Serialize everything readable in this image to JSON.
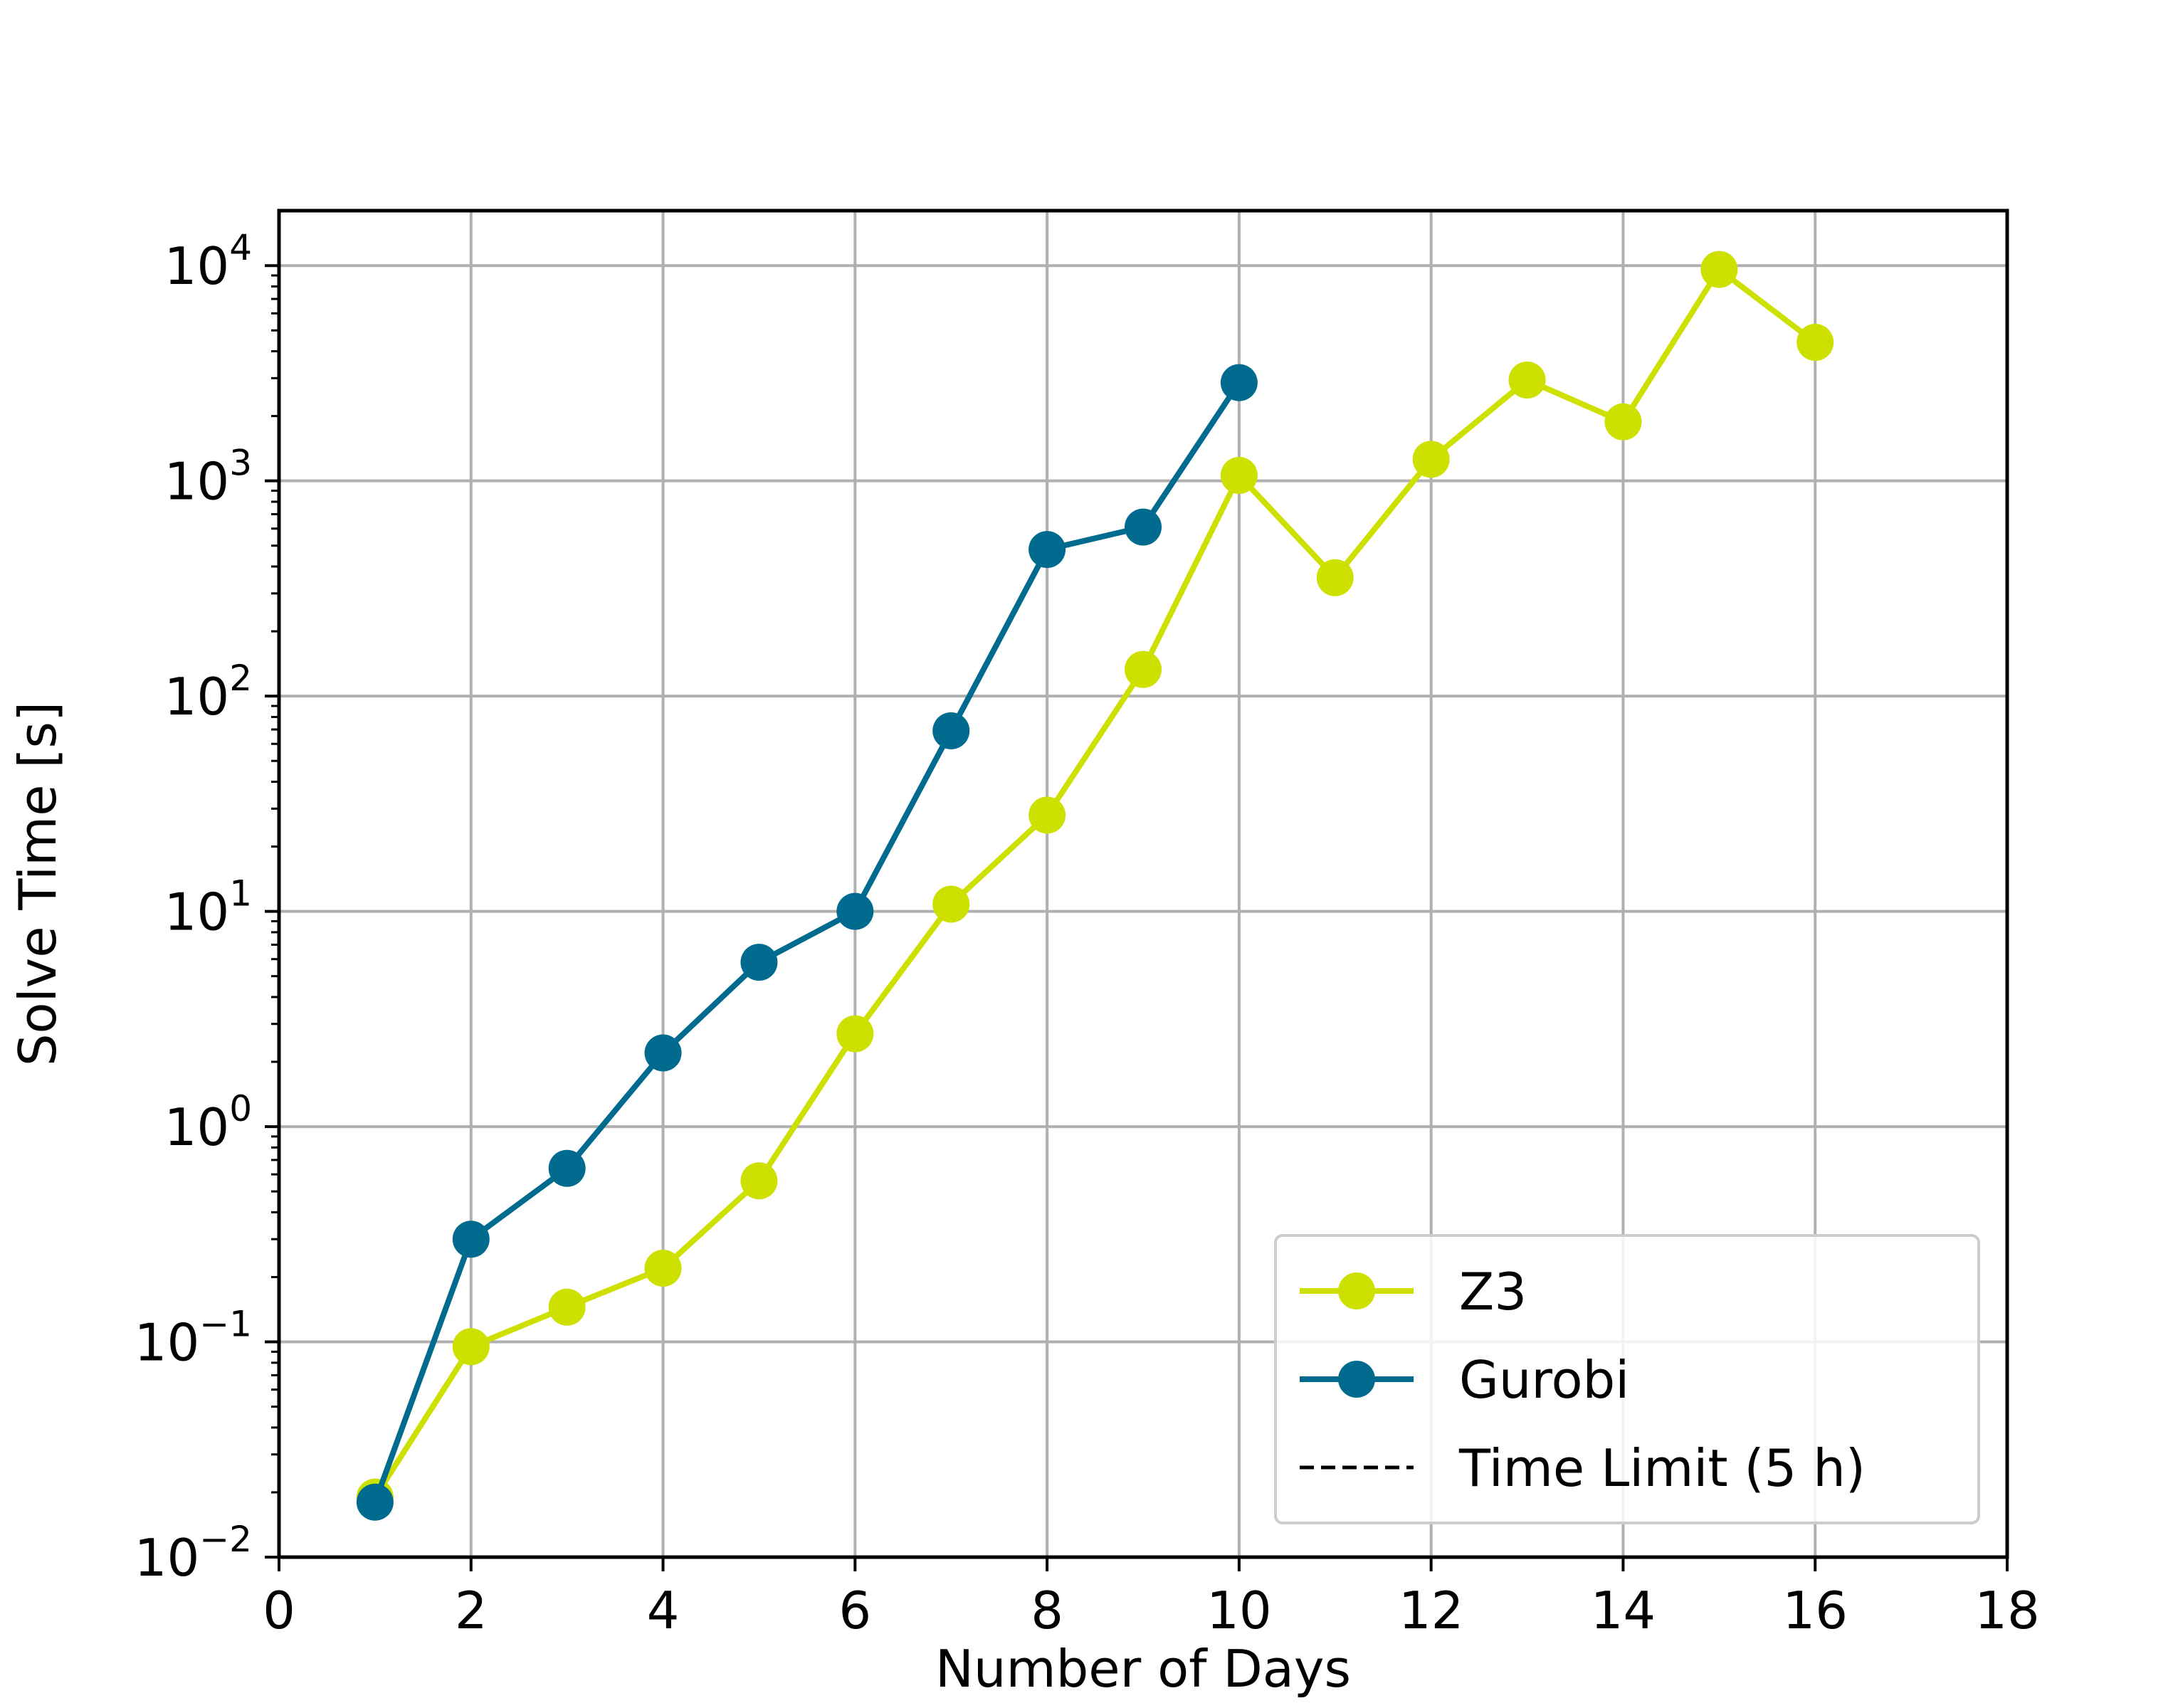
{
  "chart_data": {
    "type": "line",
    "title": "",
    "xlabel": "Number of Days",
    "ylabel": "Solve Time [s]",
    "xlim": [
      0,
      18
    ],
    "ylim": [
      0.01,
      18000
    ],
    "yscale": "log",
    "grid": true,
    "legend_position": "lower-right",
    "xticks": [
      "0",
      "2",
      "4",
      "6",
      "8",
      "10",
      "12",
      "14",
      "16",
      "18"
    ],
    "yticks": [
      {
        "base": "10",
        "exp": "−2"
      },
      {
        "base": "10",
        "exp": "−1"
      },
      {
        "base": "10",
        "exp": "0"
      },
      {
        "base": "10",
        "exp": "1"
      },
      {
        "base": "10",
        "exp": "2"
      },
      {
        "base": "10",
        "exp": "3"
      },
      {
        "base": "10",
        "exp": "4"
      }
    ],
    "series": [
      {
        "name": "Z3",
        "color": "#cde000",
        "marker": "circle",
        "x": [
          1,
          2,
          3,
          4,
          5,
          6,
          7,
          8,
          9,
          10,
          11,
          12,
          13,
          14,
          15,
          16
        ],
        "y": [
          0.019,
          0.095,
          0.145,
          0.22,
          0.56,
          2.7,
          10.8,
          28,
          133,
          1060,
          355,
          1260,
          2940,
          1880,
          9600,
          4400
        ]
      },
      {
        "name": "Gurobi",
        "color": "#006b8f",
        "marker": "circle",
        "x": [
          1,
          2,
          3,
          4,
          5,
          6,
          7,
          8,
          9,
          10
        ],
        "y": [
          0.018,
          0.3,
          0.64,
          2.2,
          5.8,
          10,
          69,
          480,
          610,
          2860
        ]
      },
      {
        "name": "Time Limit (5 h)",
        "color": "#000000",
        "style": "dashed",
        "y_constant": 18000
      }
    ]
  }
}
